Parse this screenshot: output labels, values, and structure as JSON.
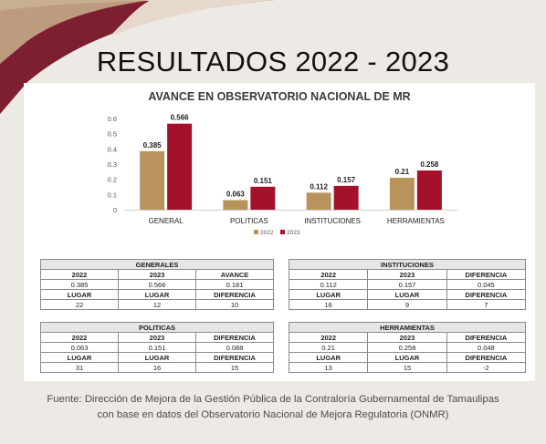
{
  "slide_title": "RESULTADOS 2022 - 2023",
  "colors": {
    "series_2022": "#b8945c",
    "series_2023": "#a3122a",
    "maroon_deco": "#7d1f30",
    "gold_deco": "#c4a988"
  },
  "chart_data": {
    "type": "bar",
    "title": "AVANCE EN OBSERVATORIO NACIONAL DE MR",
    "categories": [
      "GENERAL",
      "POLITICAS",
      "INSTITUCIONES",
      "HERRAMIENTAS"
    ],
    "series": [
      {
        "name": "2022",
        "values": [
          0.385,
          0.063,
          0.112,
          0.21
        ],
        "labels": [
          "0.385",
          "0.063",
          "0.112",
          "0.21"
        ],
        "color": "#b8945c"
      },
      {
        "name": "2023",
        "values": [
          0.566,
          0.151,
          0.157,
          0.258
        ],
        "labels": [
          "0.566",
          "0.151",
          "0.157",
          "0.258"
        ],
        "color": "#a3122a"
      }
    ],
    "yticks": [
      "0",
      "0.1",
      "0.2",
      "0.3",
      "0.4",
      "0.5",
      "0.6"
    ],
    "ylim": [
      0,
      0.6
    ],
    "grid": false,
    "legend": "bottom"
  },
  "tables": [
    {
      "title": "GENERALES",
      "head1": [
        "2022",
        "2023",
        "AVANCE"
      ],
      "row1": [
        "0.385",
        "0.566",
        "0.181"
      ],
      "head2": [
        "LUGAR",
        "LUGAR",
        "DIFERENCIA"
      ],
      "row2": [
        "22",
        "12",
        "10"
      ]
    },
    {
      "title": "INSTITUCIONES",
      "head1": [
        "2022",
        "2023",
        "DIFERENCIA"
      ],
      "row1": [
        "0.112",
        "0.157",
        "0.045"
      ],
      "head2": [
        "LUGAR",
        "LUGAR",
        "DIFERENCIA"
      ],
      "row2": [
        "16",
        "9",
        "7"
      ]
    },
    {
      "title": "POLITICAS",
      "head1": [
        "2022",
        "2023",
        "DIFERENCIA"
      ],
      "row1": [
        "0.063",
        "0.151",
        "0.088"
      ],
      "head2": [
        "LUGAR",
        "LUGAR",
        "DIFERENCIA"
      ],
      "row2": [
        "31",
        "16",
        "15"
      ]
    },
    {
      "title": "HERRAMIENTAS",
      "head1": [
        "2022",
        "2023",
        "DIFERENCIA"
      ],
      "row1": [
        "0.21",
        "0.258",
        "0.048"
      ],
      "head2": [
        "LUGAR",
        "LUGAR",
        "DIFERENCIA"
      ],
      "row2": [
        "13",
        "15",
        "-2"
      ]
    }
  ],
  "source": {
    "line1": "Fuente: Dirección de Mejora de la Gestión Pública de la Contraloría Gubernamental de Tamaulipas",
    "line2": "con base en datos del Observatorio Nacional de Mejora Regulatoria (ONMR)"
  }
}
